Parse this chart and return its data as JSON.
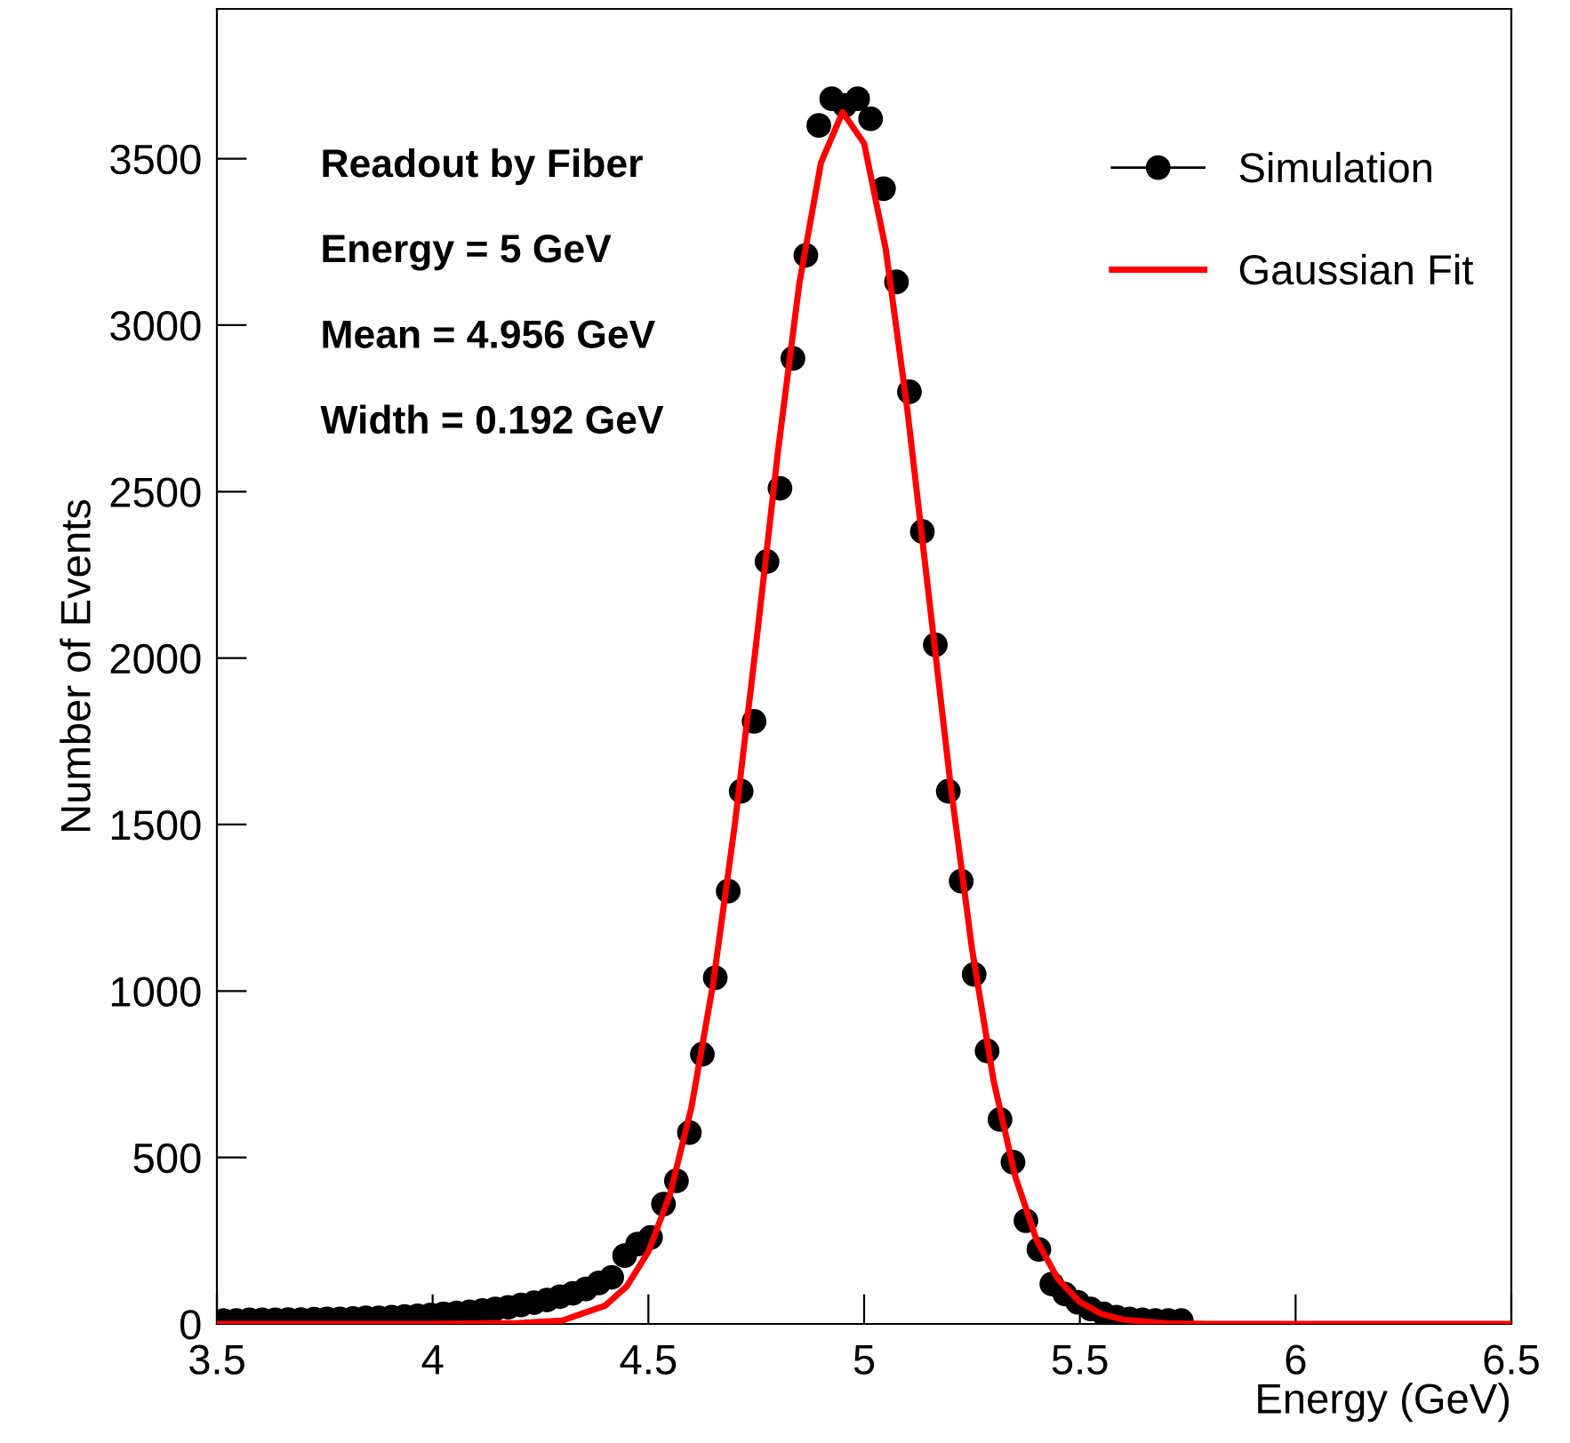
{
  "chart_data": {
    "type": "scatter",
    "xlabel": "Energy (GeV)",
    "ylabel": "Number of Events",
    "xlim": [
      3.5,
      6.5
    ],
    "ylim": [
      0,
      3950
    ],
    "xticks": [
      3.5,
      4,
      4.5,
      5,
      5.5,
      6,
      6.5
    ],
    "yticks": [
      0,
      500,
      1000,
      1500,
      2000,
      2500,
      3000,
      3500
    ],
    "grid": false,
    "legend": "top right",
    "annotations": [
      "Readout by Fiber",
      "Energy = 5 GeV",
      "Mean = 4.956 GeV",
      "Width = 0.192 GeV"
    ],
    "series": [
      {
        "name": "Simulation",
        "color": "#000000",
        "marker": "circle",
        "x": [
          3.515,
          3.545,
          3.575,
          3.605,
          3.635,
          3.665,
          3.695,
          3.725,
          3.755,
          3.785,
          3.815,
          3.845,
          3.875,
          3.905,
          3.935,
          3.965,
          3.995,
          4.025,
          4.055,
          4.085,
          4.115,
          4.145,
          4.175,
          4.205,
          4.235,
          4.265,
          4.295,
          4.325,
          4.355,
          4.385,
          4.415,
          4.445,
          4.475,
          4.505,
          4.535,
          4.565,
          4.595,
          4.625,
          4.655,
          4.685,
          4.715,
          4.745,
          4.775,
          4.805,
          4.835,
          4.865,
          4.895,
          4.925,
          4.955,
          4.985,
          5.015,
          5.045,
          5.075,
          5.105,
          5.135,
          5.165,
          5.195,
          5.225,
          5.255,
          5.285,
          5.315,
          5.345,
          5.375,
          5.405,
          5.435,
          5.465,
          5.495,
          5.525,
          5.555,
          5.585,
          5.615,
          5.645,
          5.675,
          5.705,
          5.735
        ],
        "values": [
          10,
          10,
          12,
          12,
          12,
          13,
          13,
          14,
          15,
          15,
          16,
          18,
          18,
          20,
          22,
          24,
          27,
          30,
          33,
          36,
          40,
          45,
          50,
          57,
          64,
          72,
          82,
          92,
          105,
          123,
          140,
          205,
          240,
          260,
          360,
          430,
          575,
          810,
          1040,
          1300,
          1600,
          1810,
          2290,
          2510,
          2900,
          3210,
          3600,
          3680,
          3660,
          3680,
          3620,
          3410,
          3130,
          2800,
          2380,
          2040,
          1600,
          1330,
          1050,
          820,
          614,
          486,
          310,
          224,
          120,
          90,
          65,
          45,
          30,
          20,
          15,
          12,
          10,
          10,
          10
        ]
      },
      {
        "name": "Gaussian Fit",
        "type": "line",
        "color": "#ff0000",
        "marker": "none",
        "line_style": "solid",
        "x": [
          3.5,
          4.0,
          4.2,
          4.3,
          4.4,
          4.45,
          4.5,
          4.55,
          4.6,
          4.65,
          4.7,
          4.75,
          4.8,
          4.85,
          4.9,
          4.95,
          5.0,
          5.05,
          5.1,
          5.15,
          5.2,
          5.25,
          5.3,
          5.35,
          5.4,
          5.45,
          5.5,
          5.55,
          5.6,
          5.7,
          5.8,
          6.5
        ],
        "values": [
          0,
          0,
          3,
          10,
          55,
          113,
          217,
          389,
          652,
          1022,
          1497,
          2046,
          2617,
          3127,
          3488,
          3640,
          3546,
          3229,
          2748,
          2186,
          1623,
          1127,
          731,
          444,
          251,
          133,
          66,
          30,
          13,
          2,
          0,
          0
        ]
      }
    ]
  }
}
